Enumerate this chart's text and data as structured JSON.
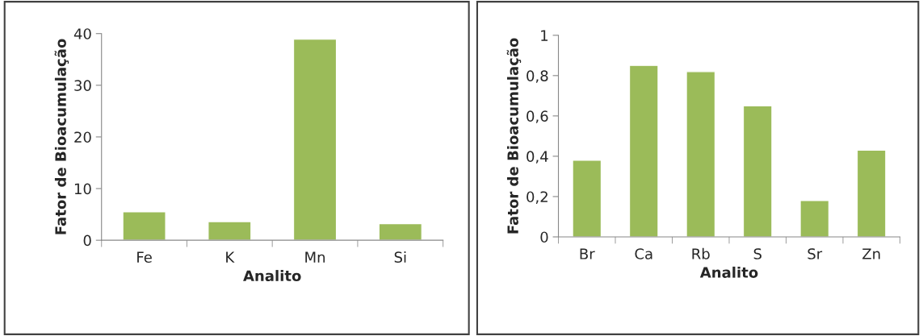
{
  "chart_data": [
    {
      "type": "bar",
      "xlabel": "Analito",
      "ylabel": "Fator de Bioacumulação",
      "categories": [
        "Fe",
        "K",
        "Mn",
        "Si"
      ],
      "values": [
        5.5,
        3.6,
        38.9,
        3.2
      ],
      "color": "#9bbb59",
      "ylim": [
        0,
        40
      ],
      "yticks": [
        0,
        10,
        20,
        30,
        40
      ],
      "grid": false,
      "legend": false
    },
    {
      "type": "bar",
      "xlabel": "Analito",
      "ylabel": "Fator de Bioacumulação",
      "categories": [
        "Br",
        "Ca",
        "Rb",
        "S",
        "Sr",
        "Zn"
      ],
      "values": [
        0.38,
        0.85,
        0.82,
        0.65,
        0.18,
        0.43
      ],
      "color": "#9bbb59",
      "ylim": [
        0,
        1
      ],
      "yticks": [
        0,
        {
          "value": 0.2,
          "label": "0,2"
        },
        {
          "value": 0.4,
          "label": "0,4"
        },
        {
          "value": 0.6,
          "label": "0,6"
        },
        {
          "value": 0.8,
          "label": "0,8"
        },
        1
      ],
      "grid": false,
      "legend": false
    }
  ]
}
